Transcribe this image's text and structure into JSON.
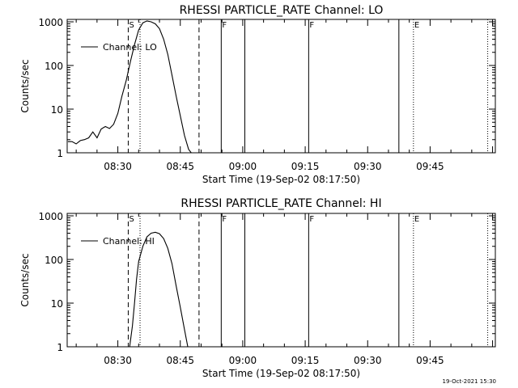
{
  "chart_data": [
    {
      "type": "line",
      "title": "RHESSI PARTICLE_RATE Channel: LO",
      "xlabel": "Start Time (19-Sep-02 08:17:50)",
      "ylabel": "Counts/sec",
      "y_scale": "log",
      "ylim": [
        1,
        1000
      ],
      "xlim": [
        "08:17:50",
        "10:00:40"
      ],
      "xticks": [
        "08:30",
        "08:45",
        "09:00",
        "09:15",
        "09:30",
        "09:45"
      ],
      "yticks": [
        "1",
        "10",
        "100",
        "1000"
      ],
      "legend": {
        "label": "Channel: LO",
        "placement": "top-left"
      },
      "grid": false,
      "markers": [
        {
          "time": "08:32:30",
          "style": "dashed",
          "label": "S"
        },
        {
          "time": "08:35:20",
          "style": "dotted",
          "label": ""
        },
        {
          "time": "08:49:30",
          "style": "dashed",
          "label": ""
        },
        {
          "time": "08:54:50",
          "style": "solid",
          "label": "F"
        },
        {
          "time": "09:00:30",
          "style": "solid",
          "label": ""
        },
        {
          "time": "09:15:50",
          "style": "solid",
          "label": "F"
        },
        {
          "time": "09:37:30",
          "style": "solid",
          "label": ""
        },
        {
          "time": "09:41:00",
          "style": "dotted",
          "label": "E"
        },
        {
          "time": "09:58:50",
          "style": "dotted",
          "label": ""
        }
      ],
      "series": [
        {
          "name": "Channel: LO",
          "x": [
            "08:18:00",
            "08:19:00",
            "08:20:00",
            "08:21:00",
            "08:22:00",
            "08:23:00",
            "08:24:00",
            "08:25:00",
            "08:26:00",
            "08:27:00",
            "08:28:00",
            "08:29:00",
            "08:30:00",
            "08:31:00",
            "08:32:00",
            "08:33:00",
            "08:34:00",
            "08:35:00",
            "08:36:00",
            "08:37:00",
            "08:38:00",
            "08:39:00",
            "08:40:00",
            "08:41:00",
            "08:42:00",
            "08:43:00",
            "08:44:00",
            "08:45:00",
            "08:46:00",
            "08:47:00",
            "08:48:00",
            "08:49:00",
            "08:50:00"
          ],
          "values": [
            1.8,
            1.8,
            1.6,
            1.9,
            2,
            2.2,
            3,
            2.2,
            3.5,
            4,
            3.6,
            4.5,
            8,
            20,
            45,
            120,
            300,
            650,
            950,
            1050,
            1000,
            900,
            700,
            400,
            180,
            60,
            20,
            7,
            2.5,
            1.2,
            0.9,
            0.9,
            0.9
          ]
        }
      ]
    },
    {
      "type": "line",
      "title": "RHESSI PARTICLE_RATE Channel: HI",
      "xlabel": "Start Time (19-Sep-02 08:17:50)",
      "ylabel": "Counts/sec",
      "y_scale": "log",
      "ylim": [
        1,
        1000
      ],
      "xlim": [
        "08:17:50",
        "10:00:40"
      ],
      "xticks": [
        "08:30",
        "08:45",
        "09:00",
        "09:15",
        "09:30",
        "09:45"
      ],
      "yticks": [
        "1",
        "10",
        "100",
        "1000"
      ],
      "legend": {
        "label": "Channel: HI",
        "placement": "top-left"
      },
      "grid": false,
      "markers": [
        {
          "time": "08:32:30",
          "style": "dashed",
          "label": "S"
        },
        {
          "time": "08:35:20",
          "style": "dotted",
          "label": ""
        },
        {
          "time": "08:49:30",
          "style": "dashed",
          "label": ""
        },
        {
          "time": "08:54:50",
          "style": "solid",
          "label": "F"
        },
        {
          "time": "09:00:30",
          "style": "solid",
          "label": ""
        },
        {
          "time": "09:15:50",
          "style": "solid",
          "label": "F"
        },
        {
          "time": "09:37:30",
          "style": "solid",
          "label": ""
        },
        {
          "time": "09:41:00",
          "style": "dotted",
          "label": "E"
        },
        {
          "time": "09:58:50",
          "style": "dotted",
          "label": ""
        }
      ],
      "series": [
        {
          "name": "Channel: HI",
          "x": [
            "08:32:50",
            "08:33:30",
            "08:34:00",
            "08:34:30",
            "08:35:00",
            "08:36:00",
            "08:37:00",
            "08:38:00",
            "08:39:00",
            "08:40:00",
            "08:41:00",
            "08:42:00",
            "08:43:00",
            "08:44:00",
            "08:45:00",
            "08:46:00",
            "08:47:00"
          ],
          "values": [
            1,
            3,
            10,
            35,
            90,
            200,
            330,
            400,
            420,
            390,
            300,
            180,
            80,
            25,
            8,
            2.5,
            0.8
          ]
        }
      ]
    }
  ],
  "footer": {
    "timestamp": "19-Oct-2021 15:30"
  }
}
